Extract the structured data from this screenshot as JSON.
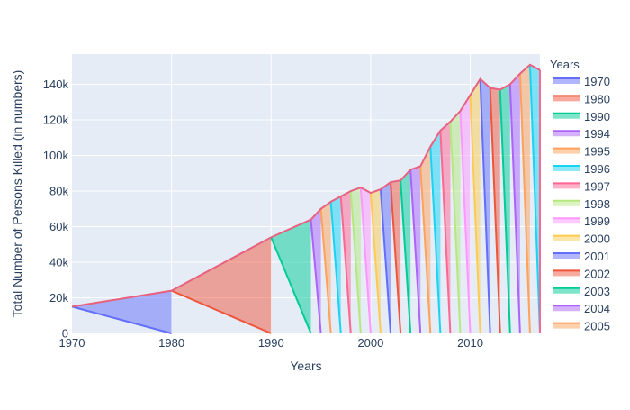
{
  "chart_data": {
    "type": "area",
    "xlabel": "Years",
    "ylabel": "Total Number of Persons Killed (in numbers)",
    "xlim": [
      1970,
      2017
    ],
    "ylim": [
      0,
      157000
    ],
    "x_ticks": [
      1970,
      1980,
      1990,
      2000,
      2010
    ],
    "x_tick_labels": [
      "1970",
      "1980",
      "1990",
      "2000",
      "2010"
    ],
    "y_ticks": [
      0,
      20000,
      40000,
      60000,
      80000,
      100000,
      120000,
      140000
    ],
    "y_tick_labels": [
      "0",
      "20k",
      "40k",
      "60k",
      "80k",
      "100k",
      "120k",
      "140k"
    ],
    "grid": true,
    "legend": {
      "title": "Years",
      "placement": "right",
      "entries": [
        "1970",
        "1980",
        "1990",
        "1994",
        "1995",
        "1996",
        "1997",
        "1998",
        "1999",
        "2000",
        "2001",
        "2002",
        "2003",
        "2004",
        "2005"
      ]
    },
    "years": [
      1970,
      1980,
      1990,
      1994,
      1995,
      1996,
      1997,
      1998,
      1999,
      2000,
      2001,
      2002,
      2003,
      2004,
      2005,
      2006,
      2007,
      2008,
      2009,
      2010,
      2011,
      2012,
      2013,
      2014,
      2015,
      2016,
      2017
    ],
    "totals": [
      15000,
      24000,
      54000,
      64000,
      70000,
      74000,
      77000,
      80000,
      82000,
      79000,
      81000,
      85000,
      86000,
      92000,
      94000,
      105000,
      114000,
      119000,
      125000,
      134000,
      143000,
      138000,
      137000,
      140000,
      146000,
      151000,
      148000
    ],
    "colors": [
      "#636efa",
      "#EF553B",
      "#00cc96",
      "#ab63fa",
      "#FFA15A",
      "#19d3f3",
      "#FF6692",
      "#B6E880",
      "#FF97FF",
      "#FECB52"
    ]
  }
}
